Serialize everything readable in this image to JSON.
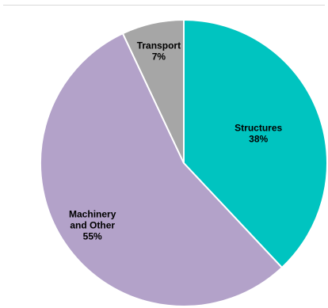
{
  "chart_data": {
    "type": "pie",
    "title": "",
    "slices": [
      {
        "label": "Structures",
        "value": 38,
        "value_label": "38%",
        "color": "#00C4C0"
      },
      {
        "label": "Machinery and Other",
        "value": 55,
        "value_label": "55%",
        "color": "#B3A2C9"
      },
      {
        "label": "Transport",
        "value": 7,
        "value_label": "7%",
        "color": "#A6A6A6"
      }
    ],
    "start_angle": "12 o'clock",
    "direction": "clockwise",
    "legend": "none",
    "slice_border_color": "#ffffff"
  }
}
